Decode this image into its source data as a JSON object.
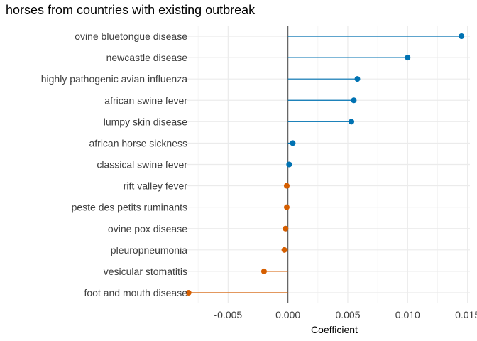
{
  "chart_data": {
    "type": "lollipop",
    "title": "horses from countries with existing outbreak",
    "xlabel": "Coefficient",
    "ylabel": "",
    "xlim": [
      -0.0084,
      0.0152
    ],
    "xticks": [
      -0.005,
      0.0,
      0.005,
      0.01,
      0.015
    ],
    "xtick_labels": [
      "-0.005",
      "0.000",
      "0.005",
      "0.010",
      "0.015"
    ],
    "grid": true,
    "legend": "none",
    "colors": {
      "positive": "#0072B2",
      "negative": "#D55E00",
      "zero_line": "#555555",
      "grid_major": "#ebebeb",
      "grid_minor": "#f5f5f5"
    },
    "categories": [
      "ovine bluetongue disease",
      "newcastle disease",
      "highly pathogenic avian influenza",
      "african swine fever",
      "lumpy skin disease",
      "african horse sickness",
      "classical swine fever",
      "rift valley fever",
      "peste des petits ruminants",
      "ovine pox disease",
      "pleuropneumonia",
      "vesicular stomatitis",
      "foot and mouth disease"
    ],
    "values": [
      0.0145,
      0.01,
      0.0058,
      0.0055,
      0.0053,
      0.0004,
      0.0001,
      -0.0001,
      -0.0001,
      -0.0002,
      -0.0003,
      -0.002,
      -0.0083
    ]
  }
}
